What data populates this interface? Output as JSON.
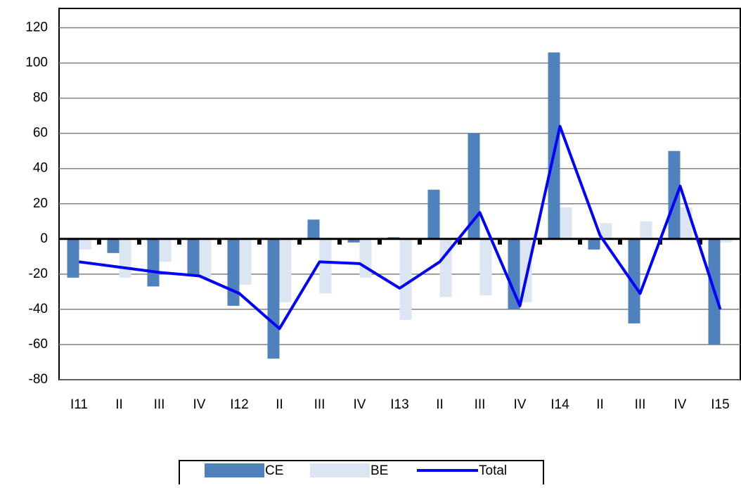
{
  "chart_data": {
    "type": "bar-line",
    "categories": [
      "I11",
      "II",
      "III",
      "IV",
      "I12",
      "II",
      "III",
      "IV",
      "I13",
      "II",
      "III",
      "IV",
      "I14",
      "II",
      "III",
      "IV",
      "I15"
    ],
    "series": [
      {
        "name": "CE",
        "type": "bar",
        "color": "#4f81bd",
        "values": [
          -22,
          -8,
          -27,
          -20,
          -38,
          -68,
          11,
          -2,
          1,
          28,
          60,
          -40,
          106,
          -6,
          -48,
          50,
          -60
        ]
      },
      {
        "name": "BE",
        "type": "bar",
        "color": "#dce6f2",
        "values": [
          -6,
          -22,
          -13,
          -22,
          -26,
          -36,
          -31,
          -22,
          -46,
          -33,
          -32,
          -36,
          18,
          9,
          10,
          18,
          -2
        ]
      },
      {
        "name": "Total",
        "type": "line",
        "color": "#0000ff",
        "values": [
          -13,
          -16,
          -19,
          -21,
          -31,
          -51,
          -13,
          -14,
          -28,
          -13,
          15,
          -38,
          64,
          2,
          -31,
          30,
          -40
        ]
      }
    ],
    "ylim": [
      -80,
      131
    ],
    "yticks": [
      -80,
      -60,
      -40,
      -20,
      0,
      20,
      40,
      60,
      80,
      100,
      120
    ],
    "grid": true
  }
}
